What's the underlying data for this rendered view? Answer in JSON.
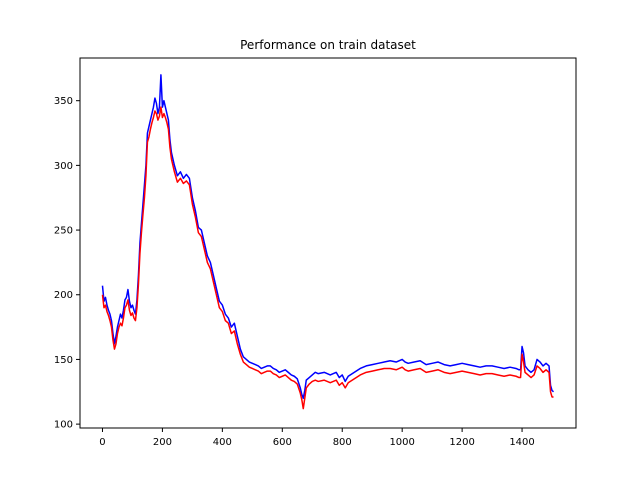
{
  "chart_data": {
    "type": "line",
    "title": "Performance on train dataset",
    "xlabel": "",
    "ylabel": "",
    "xlim": [
      -75,
      1580
    ],
    "ylim": [
      97,
      383
    ],
    "x_ticks": [
      0,
      200,
      400,
      600,
      800,
      1000,
      1200,
      1400
    ],
    "y_ticks": [
      100,
      150,
      200,
      250,
      300,
      350
    ],
    "grid": false,
    "legend": "none",
    "series": [
      {
        "color": "#0000ff",
        "x": [
          0,
          5,
          10,
          15,
          20,
          25,
          30,
          35,
          40,
          45,
          50,
          55,
          60,
          65,
          70,
          75,
          80,
          85,
          90,
          95,
          100,
          105,
          110,
          115,
          120,
          125,
          130,
          135,
          140,
          145,
          150,
          155,
          160,
          165,
          170,
          175,
          180,
          185,
          190,
          195,
          200,
          205,
          210,
          215,
          220,
          225,
          230,
          240,
          250,
          260,
          270,
          280,
          290,
          300,
          310,
          320,
          330,
          340,
          350,
          360,
          370,
          380,
          390,
          400,
          410,
          420,
          430,
          440,
          450,
          460,
          470,
          480,
          490,
          500,
          510,
          520,
          530,
          540,
          550,
          560,
          570,
          580,
          590,
          600,
          610,
          620,
          630,
          640,
          650,
          660,
          665,
          670,
          675,
          680,
          690,
          700,
          710,
          720,
          740,
          760,
          780,
          790,
          800,
          810,
          820,
          840,
          860,
          880,
          900,
          920,
          940,
          960,
          980,
          1000,
          1010,
          1020,
          1040,
          1060,
          1080,
          1100,
          1120,
          1140,
          1160,
          1180,
          1200,
          1220,
          1240,
          1260,
          1280,
          1300,
          1320,
          1340,
          1360,
          1380,
          1390,
          1395,
          1400,
          1405,
          1410,
          1420,
          1430,
          1440,
          1450,
          1460,
          1470,
          1480,
          1490,
          1495,
          1500,
          1505
        ],
        "y": [
          207,
          195,
          198,
          192,
          188,
          185,
          180,
          170,
          162,
          168,
          175,
          180,
          185,
          182,
          188,
          196,
          198,
          204,
          195,
          190,
          192,
          188,
          185,
          196,
          215,
          240,
          255,
          270,
          285,
          300,
          325,
          330,
          335,
          340,
          345,
          352,
          348,
          340,
          345,
          370,
          345,
          350,
          345,
          340,
          335,
          320,
          310,
          300,
          292,
          295,
          290,
          293,
          290,
          275,
          265,
          252,
          250,
          240,
          230,
          225,
          215,
          205,
          195,
          192,
          185,
          182,
          175,
          178,
          168,
          158,
          152,
          150,
          148,
          147,
          146,
          145,
          143,
          144,
          145,
          145,
          143,
          142,
          140,
          141,
          142,
          140,
          138,
          137,
          135,
          128,
          123,
          120,
          126,
          134,
          136,
          138,
          140,
          139,
          140,
          138,
          140,
          136,
          138,
          133,
          137,
          140,
          143,
          145,
          146,
          147,
          148,
          149,
          148,
          150,
          148,
          147,
          148,
          149,
          146,
          147,
          148,
          146,
          145,
          146,
          147,
          146,
          145,
          144,
          145,
          145,
          144,
          143,
          144,
          143,
          142,
          142,
          160,
          155,
          145,
          142,
          140,
          142,
          150,
          148,
          145,
          147,
          145,
          130,
          126,
          125
        ]
      },
      {
        "color": "#ff0000",
        "x": [
          0,
          5,
          10,
          15,
          20,
          25,
          30,
          35,
          40,
          45,
          50,
          55,
          60,
          65,
          70,
          75,
          80,
          85,
          90,
          95,
          100,
          105,
          110,
          115,
          120,
          125,
          130,
          135,
          140,
          145,
          150,
          155,
          160,
          165,
          170,
          175,
          180,
          185,
          190,
          195,
          200,
          205,
          210,
          215,
          220,
          225,
          230,
          240,
          250,
          260,
          270,
          280,
          290,
          300,
          310,
          320,
          330,
          340,
          350,
          360,
          370,
          380,
          390,
          400,
          410,
          420,
          430,
          440,
          450,
          460,
          470,
          480,
          490,
          500,
          510,
          520,
          530,
          540,
          550,
          560,
          570,
          580,
          590,
          600,
          610,
          620,
          630,
          640,
          650,
          660,
          665,
          670,
          675,
          680,
          690,
          700,
          710,
          720,
          740,
          760,
          780,
          790,
          800,
          810,
          820,
          840,
          860,
          880,
          900,
          920,
          940,
          960,
          980,
          1000,
          1010,
          1020,
          1040,
          1060,
          1080,
          1100,
          1120,
          1140,
          1160,
          1180,
          1200,
          1220,
          1240,
          1260,
          1280,
          1300,
          1320,
          1340,
          1360,
          1380,
          1390,
          1395,
          1400,
          1405,
          1410,
          1420,
          1430,
          1440,
          1450,
          1460,
          1470,
          1480,
          1490,
          1495,
          1500,
          1505
        ],
        "y": [
          200,
          190,
          192,
          187,
          184,
          180,
          175,
          165,
          158,
          162,
          170,
          175,
          178,
          176,
          182,
          190,
          192,
          196,
          188,
          184,
          186,
          182,
          180,
          190,
          208,
          232,
          248,
          262,
          275,
          292,
          318,
          322,
          328,
          333,
          337,
          342,
          340,
          335,
          338,
          345,
          337,
          340,
          337,
          333,
          328,
          314,
          305,
          295,
          287,
          290,
          286,
          288,
          285,
          270,
          260,
          248,
          245,
          235,
          225,
          220,
          210,
          200,
          190,
          187,
          180,
          178,
          170,
          172,
          162,
          154,
          148,
          146,
          144,
          143,
          142,
          141,
          139,
          140,
          141,
          141,
          139,
          138,
          136,
          137,
          138,
          136,
          134,
          133,
          131,
          124,
          119,
          112,
          120,
          128,
          131,
          133,
          134,
          133,
          134,
          132,
          134,
          130,
          132,
          128,
          132,
          135,
          138,
          140,
          141,
          142,
          143,
          143,
          142,
          144,
          142,
          141,
          142,
          143,
          140,
          141,
          142,
          140,
          139,
          140,
          141,
          140,
          139,
          138,
          139,
          139,
          138,
          137,
          138,
          137,
          136,
          136,
          154,
          148,
          140,
          138,
          136,
          138,
          145,
          143,
          140,
          142,
          140,
          125,
          121,
          121
        ]
      }
    ]
  }
}
